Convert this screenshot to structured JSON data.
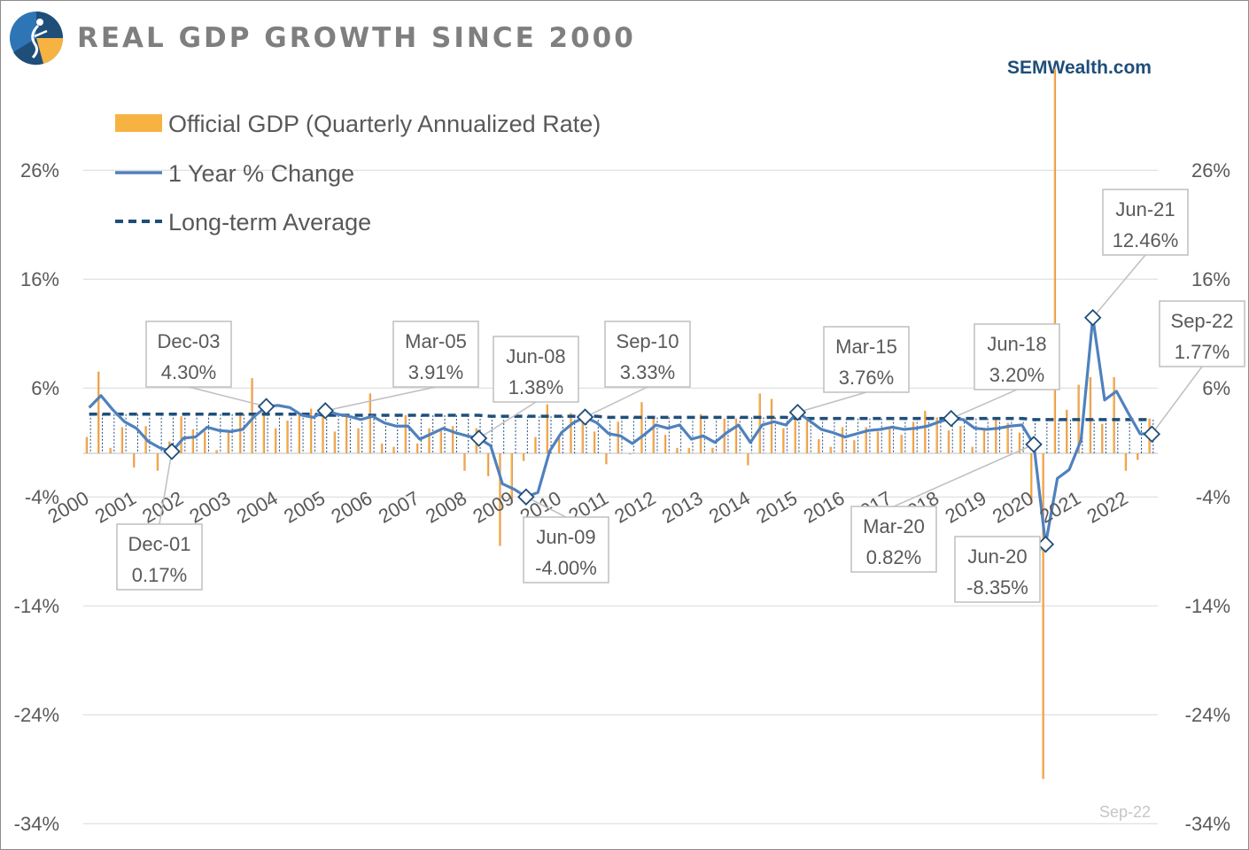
{
  "page": {
    "title": "REAL GDP GROWTH SINCE 2000",
    "brand": "SEMWealth.com",
    "footnote": "Sep-22",
    "logo_icon": "sem-logo-icon"
  },
  "chart_data": {
    "type": "bar",
    "title": "REAL GDP GROWTH SINCE 2000",
    "ylim": [
      -34,
      36
    ],
    "y_ticks": [
      -34,
      -24,
      -14,
      -4,
      6,
      16,
      26
    ],
    "y_tick_labels": [
      "-34%",
      "-24%",
      "-14%",
      "-4%",
      "6%",
      "16%",
      "26%"
    ],
    "x_tick_labels": [
      "2000",
      "2001",
      "2002",
      "2003",
      "2004",
      "2005",
      "2006",
      "2007",
      "2008",
      "2009",
      "2010",
      "2011",
      "2012",
      "2013",
      "2014",
      "2015",
      "2016",
      "2017",
      "2018",
      "2019",
      "2020",
      "2021",
      "2022"
    ],
    "legend": [
      {
        "name": "Official GDP (Quarterly Annualized Rate)",
        "color": "#f7b342"
      },
      {
        "name": "1 Year % Change",
        "color": "#4f81bd"
      },
      {
        "name": "Long-term Average",
        "color": "#1f4e79"
      }
    ],
    "quarters": [
      "Mar-00",
      "Jun-00",
      "Sep-00",
      "Dec-00",
      "Mar-01",
      "Jun-01",
      "Sep-01",
      "Dec-01",
      "Mar-02",
      "Jun-02",
      "Sep-02",
      "Dec-02",
      "Mar-03",
      "Jun-03",
      "Sep-03",
      "Dec-03",
      "Mar-04",
      "Jun-04",
      "Sep-04",
      "Dec-04",
      "Mar-05",
      "Jun-05",
      "Sep-05",
      "Dec-05",
      "Mar-06",
      "Jun-06",
      "Sep-06",
      "Dec-06",
      "Mar-07",
      "Jun-07",
      "Sep-07",
      "Dec-07",
      "Mar-08",
      "Jun-08",
      "Sep-08",
      "Dec-08",
      "Mar-09",
      "Jun-09",
      "Sep-09",
      "Dec-09",
      "Mar-10",
      "Jun-10",
      "Sep-10",
      "Dec-10",
      "Mar-11",
      "Jun-11",
      "Sep-11",
      "Dec-11",
      "Mar-12",
      "Jun-12",
      "Sep-12",
      "Dec-12",
      "Mar-13",
      "Jun-13",
      "Sep-13",
      "Dec-13",
      "Mar-14",
      "Jun-14",
      "Sep-14",
      "Dec-14",
      "Mar-15",
      "Jun-15",
      "Sep-15",
      "Dec-15",
      "Mar-16",
      "Jun-16",
      "Sep-16",
      "Dec-16",
      "Mar-17",
      "Jun-17",
      "Sep-17",
      "Dec-17",
      "Mar-18",
      "Jun-18",
      "Sep-18",
      "Dec-18",
      "Mar-19",
      "Jun-19",
      "Sep-19",
      "Dec-19",
      "Mar-20",
      "Jun-20",
      "Sep-20",
      "Dec-20",
      "Mar-21",
      "Jun-21",
      "Sep-21",
      "Dec-21",
      "Mar-22",
      "Jun-22",
      "Sep-22"
    ],
    "series": [
      {
        "name": "Official GDP (Quarterly Annualized Rate)",
        "color": "#f7b342",
        "values": [
          1.5,
          7.5,
          0.5,
          2.4,
          -1.3,
          2.5,
          -1.6,
          1.1,
          3.4,
          2.2,
          2.0,
          0.3,
          2.1,
          3.8,
          6.9,
          4.8,
          2.3,
          3.0,
          3.7,
          4.1,
          4.3,
          2.0,
          3.4,
          2.3,
          5.5,
          0.9,
          0.6,
          3.5,
          0.9,
          2.3,
          2.2,
          2.5,
          -1.6,
          2.3,
          -2.1,
          -8.5,
          -4.6,
          -0.7,
          1.5,
          4.5,
          1.5,
          3.7,
          3.0,
          2.0,
          -1.0,
          2.9,
          -0.1,
          4.7,
          3.2,
          1.7,
          0.5,
          0.5,
          3.6,
          0.5,
          3.2,
          3.2,
          -1.1,
          5.5,
          5.0,
          2.3,
          3.2,
          3.0,
          1.3,
          0.6,
          2.4,
          1.2,
          2.4,
          2.0,
          2.3,
          1.7,
          2.9,
          3.9,
          3.3,
          2.1,
          2.5,
          0.6,
          2.2,
          3.2,
          2.8,
          1.9,
          -4.6,
          -29.9,
          35.3,
          4.0,
          6.3,
          7.0,
          2.7,
          7.0,
          -1.6,
          -0.6,
          3.2
        ]
      },
      {
        "name": "1 Year % Change",
        "color": "#4f81bd",
        "values": [
          4.2,
          5.3,
          4.0,
          2.9,
          2.3,
          1.1,
          0.5,
          0.17,
          1.4,
          1.5,
          2.4,
          2.1,
          2.0,
          2.2,
          3.4,
          4.3,
          4.4,
          4.2,
          3.5,
          3.3,
          3.91,
          3.6,
          3.4,
          3.1,
          3.4,
          2.8,
          2.5,
          2.5,
          1.3,
          1.8,
          2.3,
          1.9,
          1.6,
          1.38,
          0.7,
          -2.8,
          -3.3,
          -4.0,
          -3.6,
          0.2,
          1.9,
          2.8,
          3.33,
          2.8,
          1.8,
          1.6,
          0.9,
          1.7,
          2.6,
          2.3,
          2.6,
          1.3,
          1.6,
          1.0,
          1.9,
          2.6,
          1.0,
          2.6,
          2.9,
          2.6,
          3.76,
          3.0,
          2.2,
          1.9,
          1.5,
          1.8,
          2.1,
          2.2,
          2.4,
          2.2,
          2.3,
          2.5,
          2.9,
          3.2,
          3.1,
          2.3,
          2.2,
          2.3,
          2.5,
          2.6,
          0.82,
          -8.35,
          -2.3,
          -1.5,
          1.2,
          12.46,
          4.9,
          5.7,
          3.7,
          1.8,
          1.77
        ]
      },
      {
        "name": "Long-term Average",
        "color": "#1f4e79",
        "values": [
          3.6,
          3.6,
          3.6,
          3.6,
          3.6,
          3.6,
          3.6,
          3.6,
          3.6,
          3.6,
          3.6,
          3.6,
          3.6,
          3.6,
          3.6,
          3.6,
          3.6,
          3.6,
          3.6,
          3.6,
          3.5,
          3.5,
          3.5,
          3.5,
          3.5,
          3.5,
          3.5,
          3.5,
          3.5,
          3.5,
          3.5,
          3.5,
          3.5,
          3.5,
          3.4,
          3.4,
          3.4,
          3.4,
          3.4,
          3.4,
          3.4,
          3.4,
          3.4,
          3.4,
          3.3,
          3.3,
          3.3,
          3.3,
          3.3,
          3.3,
          3.3,
          3.3,
          3.3,
          3.3,
          3.3,
          3.3,
          3.3,
          3.3,
          3.3,
          3.3,
          3.2,
          3.2,
          3.2,
          3.2,
          3.2,
          3.2,
          3.2,
          3.2,
          3.2,
          3.2,
          3.2,
          3.2,
          3.2,
          3.2,
          3.2,
          3.2,
          3.2,
          3.2,
          3.2,
          3.2,
          3.1,
          3.1,
          3.1,
          3.1,
          3.1,
          3.1,
          3.1,
          3.1,
          3.1,
          3.1,
          3.1
        ]
      }
    ],
    "annotations": [
      {
        "date": "Dec-01",
        "value": "0.17%"
      },
      {
        "date": "Dec-03",
        "value": "4.30%"
      },
      {
        "date": "Mar-05",
        "value": "3.91%"
      },
      {
        "date": "Jun-08",
        "value": "1.38%"
      },
      {
        "date": "Jun-09",
        "value": "-4.00%"
      },
      {
        "date": "Sep-10",
        "value": "3.33%"
      },
      {
        "date": "Mar-15",
        "value": "3.76%"
      },
      {
        "date": "Jun-18",
        "value": "3.20%"
      },
      {
        "date": "Mar-20",
        "value": "0.82%"
      },
      {
        "date": "Jun-20",
        "value": "-8.35%"
      },
      {
        "date": "Jun-21",
        "value": "12.46%"
      },
      {
        "date": "Sep-22",
        "value": "1.77%"
      }
    ],
    "grid": true,
    "legend_position": "top-left"
  }
}
